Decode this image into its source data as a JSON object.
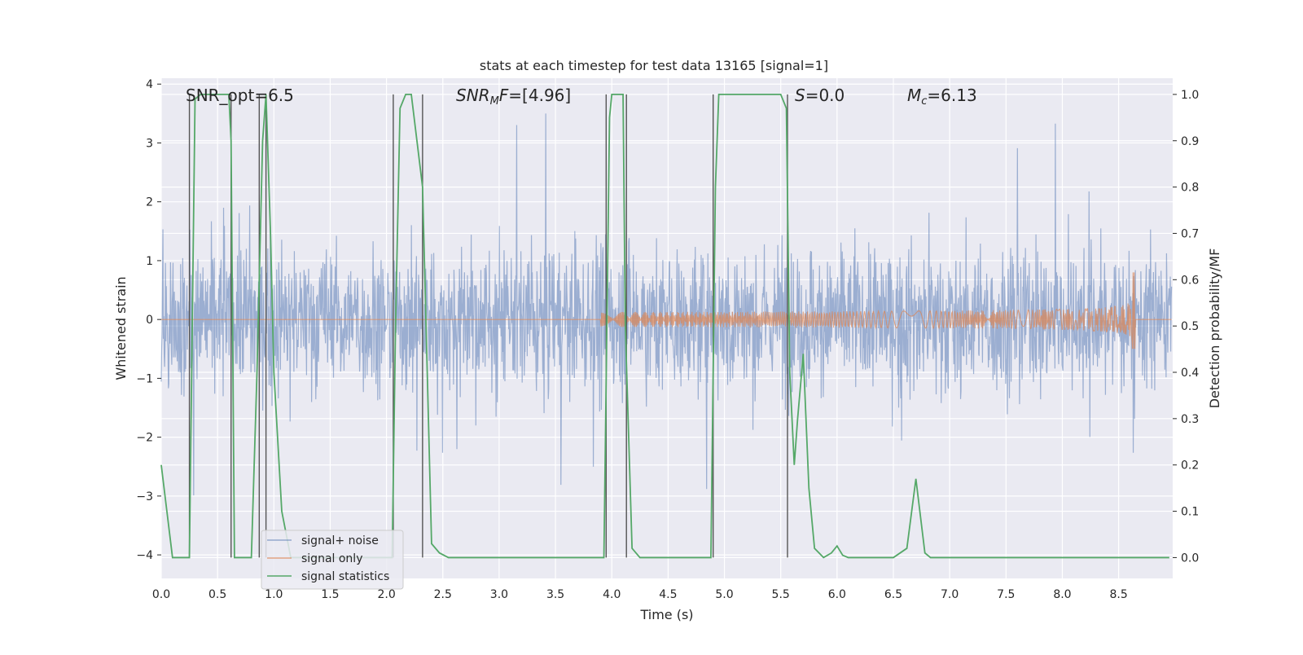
{
  "chart_data": {
    "type": "line",
    "title": "stats at each timestep for test data 13165 [signal=1]",
    "xlabel": "Time (s)",
    "ylabel_left": "Whitened strain",
    "ylabel_right": "Detection probability/MF",
    "xlim": [
      0.0,
      8.98
    ],
    "ylim_left": [
      -4.4,
      4.1
    ],
    "ylim_right": [
      -0.045,
      1.035
    ],
    "grid": true,
    "x_ticks": [
      "0.0",
      "0.5",
      "1.0",
      "1.5",
      "2.0",
      "2.5",
      "3.0",
      "3.5",
      "4.0",
      "4.5",
      "5.0",
      "5.5",
      "6.0",
      "6.5",
      "7.0",
      "7.5",
      "8.0",
      "8.5"
    ],
    "y_ticks_left": [
      "4",
      "3",
      "2",
      "1",
      "0",
      "−1",
      "−2",
      "−3",
      "−4"
    ],
    "y_ticks_right": [
      "1.0",
      "0.9",
      "0.8",
      "0.7",
      "0.6",
      "0.5",
      "0.4",
      "0.3",
      "0.2",
      "0.1",
      "0.0"
    ],
    "annotations": {
      "snr_opt": "SNR_opt=6.5",
      "snr_mf_sym": "SNR",
      "snr_mf_sub": "M",
      "snr_mf_rest": "F=[4.96]",
      "s_sym": "S",
      "s_rest": "=0.0",
      "mc_sym": "M",
      "mc_sub": "c",
      "mc_rest": "=6.13"
    },
    "legend_position": "lower-left",
    "colors": {
      "noise": "#4c72b0",
      "signal": "#dd8452",
      "stats": "#55a868",
      "vline": "#555555",
      "plot_bg": "#eaeaf2"
    },
    "series": [
      {
        "name": "signal+ noise",
        "description_level": "noise band approx ±1.7 with spikes up to ±3.5",
        "envelope": {
          "typical_low": -1.7,
          "typical_high": 1.7,
          "spike_max": 3.5,
          "spike_min": -3.6
        }
      },
      {
        "name": "signal only",
        "chirp": {
          "start_time": 3.9,
          "merger_time": 8.65,
          "peak_amplitude": 0.8,
          "merger_min": -0.5
        }
      },
      {
        "name": "signal statistics",
        "x": [
          0.0,
          0.05,
          0.1,
          0.25,
          0.3,
          0.35,
          0.6,
          0.62,
          0.65,
          0.8,
          0.85,
          0.9,
          0.93,
          0.97,
          1.0,
          1.07,
          1.15,
          1.5,
          2.0,
          2.05,
          2.08,
          2.12,
          2.17,
          2.22,
          2.32,
          2.4,
          2.47,
          2.55,
          3.5,
          3.93,
          3.98,
          4.0,
          4.1,
          4.12,
          4.18,
          4.25,
          4.5,
          4.88,
          4.92,
          4.95,
          5.0,
          5.5,
          5.55,
          5.58,
          5.62,
          5.65,
          5.7,
          5.75,
          5.8,
          5.88,
          5.95,
          6.0,
          6.05,
          6.1,
          6.5,
          6.62,
          6.7,
          6.78,
          6.83,
          6.9,
          7.5,
          8.0,
          8.5,
          8.95
        ],
        "y": [
          0.2,
          0.1,
          0.0,
          0.0,
          0.99,
          1.0,
          1.0,
          0.9,
          0.0,
          0.0,
          0.4,
          0.9,
          1.0,
          0.7,
          0.4,
          0.1,
          0.0,
          0.0,
          0.0,
          0.0,
          0.5,
          0.97,
          1.0,
          1.0,
          0.8,
          0.03,
          0.01,
          0.0,
          0.0,
          0.0,
          0.95,
          1.0,
          1.0,
          0.5,
          0.02,
          0.0,
          0.0,
          0.0,
          0.8,
          1.0,
          1.0,
          1.0,
          0.97,
          0.4,
          0.2,
          0.3,
          0.44,
          0.15,
          0.02,
          0.0,
          0.01,
          0.025,
          0.005,
          0.0,
          0.0,
          0.02,
          0.17,
          0.01,
          0.0,
          0.0,
          0.0,
          0.0,
          0.0,
          0.0
        ]
      }
    ],
    "vertical_lines_x": [
      0.25,
      0.62,
      0.87,
      0.93,
      2.06,
      2.32,
      3.95,
      4.13,
      4.9,
      5.56
    ],
    "right_axis_spikes": [
      {
        "time": 0.93,
        "value": 1.0
      }
    ]
  },
  "legend": {
    "items": [
      "signal+ noise",
      "signal only",
      "signal statistics"
    ]
  }
}
